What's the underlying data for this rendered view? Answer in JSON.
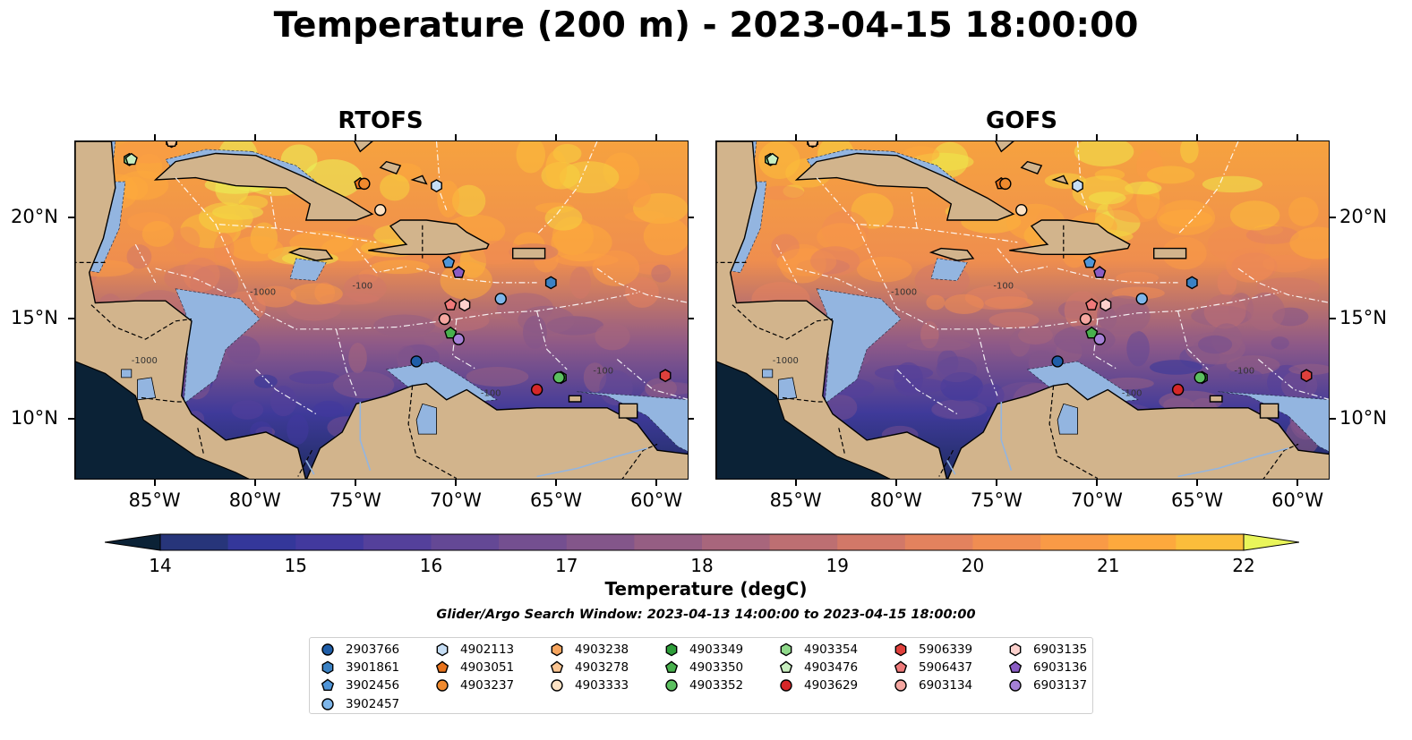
{
  "title": "Temperature (200 m) - 2023-04-15 18:00:00",
  "panels": [
    {
      "title": "RTOFS"
    },
    {
      "title": "GOFS"
    }
  ],
  "map_extent": {
    "lon_min": -89,
    "lon_max": -58.4,
    "lat_min": 7,
    "lat_max": 23.8
  },
  "lon_ticks": [
    "85°W",
    "80°W",
    "75°W",
    "70°W",
    "65°W",
    "60°W"
  ],
  "lon_tick_values": [
    -85,
    -80,
    -75,
    -70,
    -65,
    -60
  ],
  "lat_ticks": [
    "20°N",
    "15°N",
    "10°N"
  ],
  "lat_tick_values": [
    20,
    15,
    10
  ],
  "colorbar": {
    "label": "Temperature (degC)",
    "min": 14,
    "max": 22,
    "step": 0.5,
    "ticks": [
      "14",
      "15",
      "16",
      "17",
      "18",
      "19",
      "20",
      "21",
      "22"
    ],
    "tick_values": [
      14,
      15,
      16,
      17,
      18,
      19,
      20,
      21,
      22
    ],
    "extend": "both",
    "colors": [
      "#0b2236",
      "#1a2f5a",
      "#27357a",
      "#34379a",
      "#42399e",
      "#54409b",
      "#644895",
      "#744f90",
      "#83568a",
      "#955e83",
      "#a8667c",
      "#bd6f72",
      "#d27868",
      "#e3825e",
      "#f08d52",
      "#f99a46",
      "#fda93d",
      "#fbbd3b",
      "#f5d33f",
      "#efe84a",
      "#e9f55a"
    ]
  },
  "search_window": "Glider/Argo Search Window: 2023-04-13 14:00:00 to 2023-04-15 18:00:00",
  "contour_labels": [
    "-100",
    "-1000",
    "-100",
    "-1000",
    "-100"
  ],
  "floats": [
    {
      "id": "2903766",
      "lon": -72.0,
      "lat": 12.9,
      "marker": "circle",
      "color": "#1f5ea8"
    },
    {
      "id": "3901861",
      "lon": -65.3,
      "lat": 16.8,
      "marker": "hexagon",
      "color": "#3b82c4"
    },
    {
      "id": "3902456",
      "lon": -70.4,
      "lat": 17.8,
      "marker": "pentagon",
      "color": "#4f95d8"
    },
    {
      "id": "3902457",
      "lon": -67.8,
      "lat": 16.0,
      "marker": "circle",
      "color": "#7eb6ea"
    },
    {
      "id": "4902113",
      "lon": -71.0,
      "lat": 21.6,
      "marker": "hexagon",
      "color": "#c6def5"
    },
    {
      "id": "4903051",
      "lon": -74.8,
      "lat": 21.7,
      "marker": "pentagon",
      "color": "#e8731d"
    },
    {
      "id": "4903237",
      "lon": -74.6,
      "lat": 21.7,
      "marker": "circle",
      "color": "#f08a2e"
    },
    {
      "id": "4903238",
      "lon": -84.2,
      "lat": 23.8,
      "marker": "hexagon",
      "color": "#f7a55e"
    },
    {
      "id": "4903278",
      "lon": -84.2,
      "lat": 23.8,
      "marker": "pentagon",
      "color": "#fbc592"
    },
    {
      "id": "4903333",
      "lon": -73.8,
      "lat": 20.4,
      "marker": "circle",
      "color": "#fde2c4"
    },
    {
      "id": "4903349",
      "lon": -64.8,
      "lat": 12.1,
      "marker": "hexagon",
      "color": "#2e9e3a"
    },
    {
      "id": "4903350",
      "lon": -70.3,
      "lat": 14.3,
      "marker": "pentagon",
      "color": "#48b04d"
    },
    {
      "id": "4903352",
      "lon": -64.9,
      "lat": 12.1,
      "marker": "circle",
      "color": "#5cc060"
    },
    {
      "id": "4903354",
      "lon": -86.3,
      "lat": 22.9,
      "marker": "hexagon",
      "color": "#8fd98a"
    },
    {
      "id": "4903476",
      "lon": -86.2,
      "lat": 22.9,
      "marker": "pentagon",
      "color": "#c8eebf"
    },
    {
      "id": "4903629",
      "lon": -66.0,
      "lat": 11.5,
      "marker": "circle",
      "color": "#d62728"
    },
    {
      "id": "5906339",
      "lon": -59.6,
      "lat": 12.2,
      "marker": "hexagon",
      "color": "#e0403c"
    },
    {
      "id": "5906437",
      "lon": -70.3,
      "lat": 15.7,
      "marker": "pentagon",
      "color": "#ef7a7a"
    },
    {
      "id": "6903134",
      "lon": -70.6,
      "lat": 15.0,
      "marker": "circle",
      "color": "#f5a6a0"
    },
    {
      "id": "6903135",
      "lon": -69.6,
      "lat": 15.7,
      "marker": "hexagon",
      "color": "#fbd0cc"
    },
    {
      "id": "6903136",
      "lon": -69.9,
      "lat": 17.3,
      "marker": "pentagon",
      "color": "#8a5cc4"
    },
    {
      "id": "6903137",
      "lon": -69.9,
      "lat": 14.0,
      "marker": "circle",
      "color": "#a580d6"
    }
  ]
}
